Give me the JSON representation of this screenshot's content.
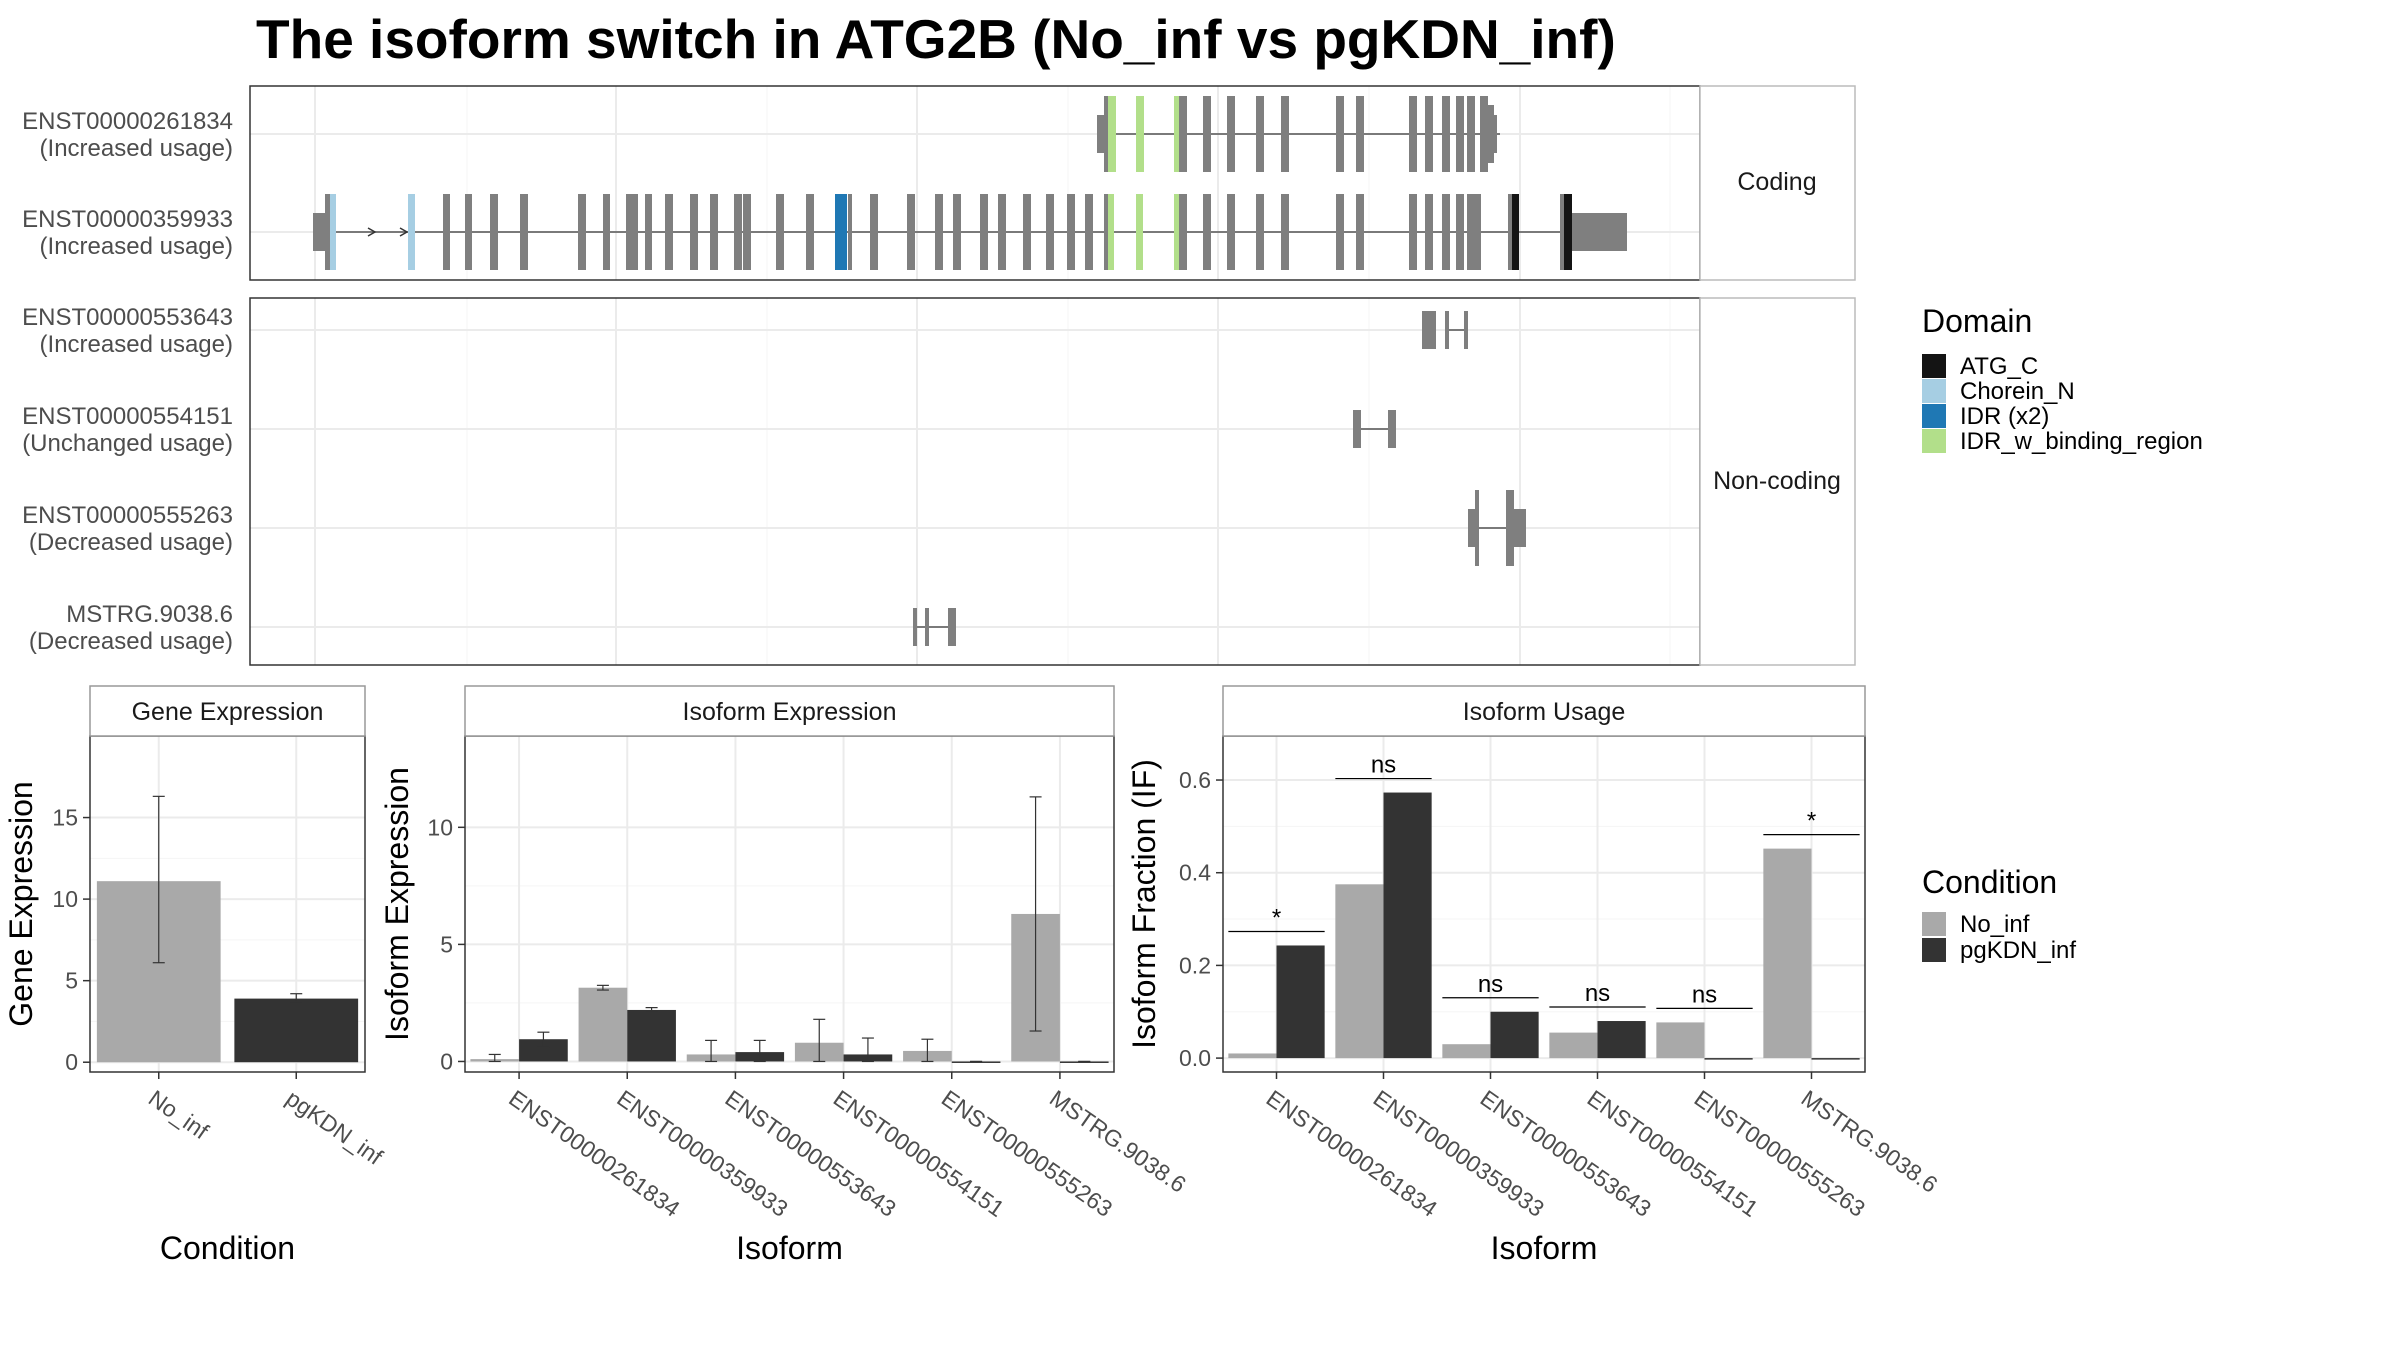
{
  "title": "The isoform switch in ATG2B (No_inf vs pgKDN_inf)",
  "colors": {
    "ATG_C": "#141414",
    "Chorein_N": "#a6cee3",
    "IDR_x2": "#1f78b4",
    "IDR_w_binding_region": "#b2df8a",
    "exon": "#7f7f7f",
    "No_inf": "#a9a9a9",
    "pgKDN_inf": "#333333"
  },
  "domain_legend": {
    "title": "Domain",
    "items": [
      {
        "label": "ATG_C",
        "color": "#141414"
      },
      {
        "label": "Chorein_N",
        "color": "#a6cee3"
      },
      {
        "label": "IDR (x2)",
        "color": "#1f78b4"
      },
      {
        "label": "IDR_w_binding_region",
        "color": "#b2df8a"
      }
    ]
  },
  "condition_legend": {
    "title": "Condition",
    "items": [
      {
        "label": "No_inf",
        "color": "#a9a9a9"
      },
      {
        "label": "pgKDN_inf",
        "color": "#333333"
      }
    ]
  },
  "structure": {
    "coding_strip": "Coding",
    "noncoding_strip": "Non-coding",
    "coding": [
      {
        "id": "ENST00000261834",
        "usage": "(Increased usage)"
      },
      {
        "id": "ENST00000359933",
        "usage": "(Increased usage)"
      }
    ],
    "noncoding": [
      {
        "id": "ENST00000553643",
        "usage": "(Increased usage)"
      },
      {
        "id": "ENST00000554151",
        "usage": "(Unchanged usage)"
      },
      {
        "id": "ENST00000555263",
        "usage": "(Decreased usage)"
      },
      {
        "id": "MSTRG.9038.6",
        "usage": "(Decreased usage)"
      }
    ]
  },
  "chart_data": [
    {
      "type": "bar",
      "title": "Gene Expression",
      "xlabel": "Condition",
      "ylabel": "Gene Expression",
      "categories": [
        "No_inf",
        "pgKDN_inf"
      ],
      "values": [
        11.1,
        3.9
      ],
      "error_low": [
        6.1,
        3.7
      ],
      "error_high": [
        16.3,
        4.2
      ],
      "yticks": [
        0,
        5,
        10,
        15
      ],
      "ylim": [
        -0.6,
        20
      ]
    },
    {
      "type": "bar",
      "title": "Isoform Expression",
      "xlabel": "Isoform",
      "ylabel": "Isoform Expression",
      "categories": [
        "ENST00000261834",
        "ENST00000359933",
        "ENST00000553643",
        "ENST00000554151",
        "ENST00000555263",
        "MSTRG.9038.6"
      ],
      "series": [
        {
          "name": "No_inf",
          "values": [
            0.1,
            3.15,
            0.3,
            0.8,
            0.45,
            6.3
          ],
          "error_low": [
            0.0,
            3.05,
            0.0,
            0.0,
            0.0,
            1.3
          ],
          "error_high": [
            0.3,
            3.25,
            0.9,
            1.8,
            0.95,
            11.3
          ]
        },
        {
          "name": "pgKDN_inf",
          "values": [
            0.95,
            2.2,
            0.4,
            0.3,
            0.0,
            0.0
          ],
          "error_low": [
            0.6,
            2.1,
            0.0,
            0.0,
            0.0,
            0.0
          ],
          "error_high": [
            1.25,
            2.3,
            0.9,
            1.0,
            0.0,
            0.0
          ]
        }
      ],
      "yticks": [
        0,
        5,
        10
      ],
      "ylim": [
        -0.45,
        13.9
      ]
    },
    {
      "type": "bar",
      "title": "Isoform Usage",
      "xlabel": "Isoform",
      "ylabel": "Isoform Fraction (IF)",
      "categories": [
        "ENST00000261834",
        "ENST00000359933",
        "ENST00000553643",
        "ENST00000554151",
        "ENST00000555263",
        "MSTRG.9038.6"
      ],
      "series": [
        {
          "name": "No_inf",
          "values": [
            0.01,
            0.375,
            0.03,
            0.055,
            0.077,
            0.452
          ]
        },
        {
          "name": "pgKDN_inf",
          "values": [
            0.243,
            0.573,
            0.1,
            0.08,
            0.0,
            0.0
          ]
        }
      ],
      "significance": [
        "*",
        "ns",
        "ns",
        "ns",
        "ns",
        "*"
      ],
      "yticks": [
        0.0,
        0.2,
        0.4,
        0.6
      ],
      "ylim": [
        -0.03,
        0.695
      ]
    }
  ]
}
